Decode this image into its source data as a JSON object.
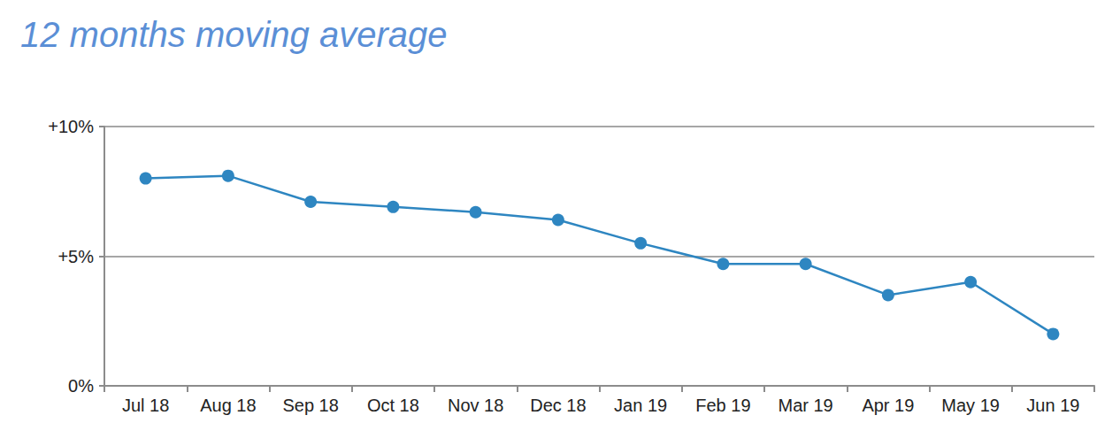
{
  "chart_data": {
    "type": "line",
    "title": "12 months moving average",
    "categories": [
      "Jul 18",
      "Aug 18",
      "Sep 18",
      "Oct 18",
      "Nov 18",
      "Dec 18",
      "Jan 19",
      "Feb 19",
      "Mar 19",
      "Apr 19",
      "May 19",
      "Jun 19"
    ],
    "values": [
      8.0,
      8.1,
      7.1,
      6.9,
      6.7,
      6.4,
      5.5,
      4.7,
      4.7,
      3.5,
      4.0,
      2.0
    ],
    "color": "#2e86c1",
    "marker": "circle",
    "line_style": "solid",
    "ylim": [
      0,
      10
    ],
    "yticks": [
      {
        "value": 0,
        "label": "0%"
      },
      {
        "value": 5,
        "label": "+5%"
      },
      {
        "value": 10,
        "label": "+10%"
      }
    ],
    "grid": true
  }
}
